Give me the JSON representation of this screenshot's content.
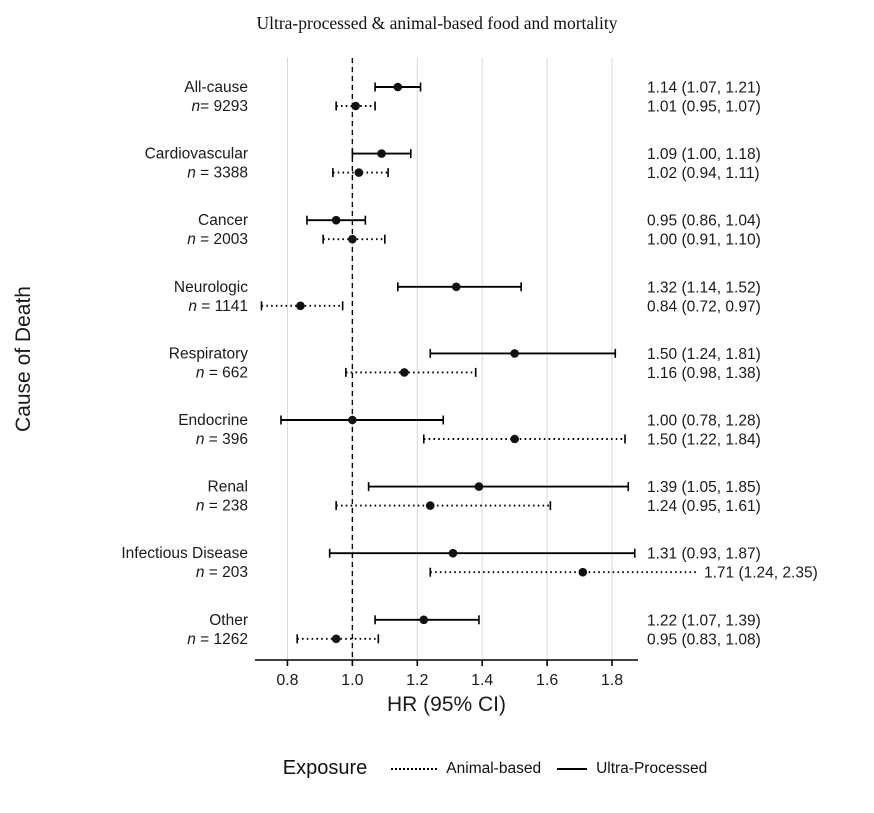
{
  "chart_data": {
    "type": "forest",
    "title": "Ultra-processed & animal-based food and mortality",
    "xlabel": "HR (95% CI)",
    "ylabel": "Cause of Death",
    "x_ticks": [
      {
        "value": 0.8,
        "label": "0.8"
      },
      {
        "value": 1.0,
        "label": "1.0"
      },
      {
        "value": 1.2,
        "label": "1.2"
      },
      {
        "value": 1.4,
        "label": "1.4"
      },
      {
        "value": 1.6,
        "label": "1.6"
      },
      {
        "value": 1.8,
        "label": "1.8"
      }
    ],
    "xlim": [
      0.7,
      1.88
    ],
    "reference_line": 1.0,
    "grid": true,
    "grid_color": "#d8d8d8",
    "accent_color": "#000000",
    "legend_position": "bottom",
    "legend": {
      "title": "Exposure",
      "items": [
        {
          "label": "Animal-based",
          "style": "dotted"
        },
        {
          "label": "Ultra-Processed",
          "style": "solid"
        }
      ]
    },
    "groups": [
      {
        "cause": "All-cause",
        "n_label": "n= 9293",
        "estimates": [
          {
            "series": "Ultra-Processed",
            "style": "solid",
            "hr": 1.14,
            "lo": 1.07,
            "hi": 1.21,
            "label": "1.14 (1.07, 1.21)"
          },
          {
            "series": "Animal-based",
            "style": "dotted",
            "hr": 1.01,
            "lo": 0.95,
            "hi": 1.07,
            "label": "1.01 (0.95, 1.07)"
          }
        ]
      },
      {
        "cause": "Cardiovascular",
        "n_label": "n = 3388",
        "estimates": [
          {
            "series": "Ultra-Processed",
            "style": "solid",
            "hr": 1.09,
            "lo": 1.0,
            "hi": 1.18,
            "label": "1.09 (1.00, 1.18)"
          },
          {
            "series": "Animal-based",
            "style": "dotted",
            "hr": 1.02,
            "lo": 0.94,
            "hi": 1.11,
            "label": "1.02 (0.94, 1.11)"
          }
        ]
      },
      {
        "cause": "Cancer",
        "n_label": "n = 2003",
        "estimates": [
          {
            "series": "Ultra-Processed",
            "style": "solid",
            "hr": 0.95,
            "lo": 0.86,
            "hi": 1.04,
            "label": "0.95 (0.86, 1.04)"
          },
          {
            "series": "Animal-based",
            "style": "dotted",
            "hr": 1.0,
            "lo": 0.91,
            "hi": 1.1,
            "label": "1.00 (0.91, 1.10)"
          }
        ]
      },
      {
        "cause": "Neurologic",
        "n_label": "n = 1141",
        "estimates": [
          {
            "series": "Ultra-Processed",
            "style": "solid",
            "hr": 1.32,
            "lo": 1.14,
            "hi": 1.52,
            "label": "1.32 (1.14, 1.52)"
          },
          {
            "series": "Animal-based",
            "style": "dotted",
            "hr": 0.84,
            "lo": 0.72,
            "hi": 0.97,
            "label": "0.84 (0.72, 0.97)"
          }
        ]
      },
      {
        "cause": "Respiratory",
        "n_label": "n = 662",
        "estimates": [
          {
            "series": "Ultra-Processed",
            "style": "solid",
            "hr": 1.5,
            "lo": 1.24,
            "hi": 1.81,
            "label": "1.50 (1.24, 1.81)"
          },
          {
            "series": "Animal-based",
            "style": "dotted",
            "hr": 1.16,
            "lo": 0.98,
            "hi": 1.38,
            "label": "1.16 (0.98, 1.38)"
          }
        ]
      },
      {
        "cause": "Endocrine",
        "n_label": "n = 396",
        "estimates": [
          {
            "series": "Ultra-Processed",
            "style": "solid",
            "hr": 1.0,
            "lo": 0.78,
            "hi": 1.28,
            "label": "1.00 (0.78, 1.28)"
          },
          {
            "series": "Animal-based",
            "style": "dotted",
            "hr": 1.5,
            "lo": 1.22,
            "hi": 1.84,
            "label": "1.50 (1.22, 1.84)"
          }
        ]
      },
      {
        "cause": "Renal",
        "n_label": "n = 238",
        "estimates": [
          {
            "series": "Ultra-Processed",
            "style": "solid",
            "hr": 1.39,
            "lo": 1.05,
            "hi": 1.85,
            "label": "1.39 (1.05, 1.85)"
          },
          {
            "series": "Animal-based",
            "style": "dotted",
            "hr": 1.24,
            "lo": 0.95,
            "hi": 1.61,
            "label": "1.24 (0.95, 1.61)"
          }
        ]
      },
      {
        "cause": "Infectious Disease",
        "n_label": "n = 203",
        "estimates": [
          {
            "series": "Ultra-Processed",
            "style": "solid",
            "hr": 1.31,
            "lo": 0.93,
            "hi": 1.87,
            "label": "1.31 (0.93, 1.87)"
          },
          {
            "series": "Animal-based",
            "style": "dotted",
            "hr": 1.71,
            "lo": 1.24,
            "hi": 2.35,
            "label": "1.71 (1.24, 2.35)"
          }
        ]
      },
      {
        "cause": "Other",
        "n_label": "n = 1262",
        "estimates": [
          {
            "series": "Ultra-Processed",
            "style": "solid",
            "hr": 1.22,
            "lo": 1.07,
            "hi": 1.39,
            "label": "1.22 (1.07, 1.39)"
          },
          {
            "series": "Animal-based",
            "style": "dotted",
            "hr": 0.95,
            "lo": 0.83,
            "hi": 1.08,
            "label": "0.95 (0.83, 1.08)"
          }
        ]
      }
    ]
  }
}
